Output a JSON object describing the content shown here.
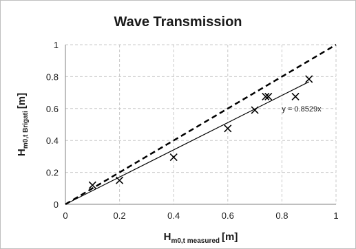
{
  "chart_data": {
    "type": "scatter",
    "title": "Wave Transmission",
    "xlabel": {
      "main": "H",
      "sub": "m0,t measured",
      "unit": "[m]"
    },
    "ylabel": {
      "main": "H",
      "sub": "m0,t Brigati",
      "unit": "[m]"
    },
    "xlim": [
      0,
      1
    ],
    "ylim": [
      0,
      1
    ],
    "x_ticks": [
      "0",
      "0.2",
      "0.4",
      "0.6",
      "0.8",
      "1"
    ],
    "y_ticks": [
      "0",
      "0.2",
      "0.4",
      "0.6",
      "0.8",
      "1"
    ],
    "grid": "dashed",
    "points": [
      {
        "x": 0.1,
        "y": 0.12
      },
      {
        "x": 0.2,
        "y": 0.15
      },
      {
        "x": 0.4,
        "y": 0.295
      },
      {
        "x": 0.6,
        "y": 0.475
      },
      {
        "x": 0.7,
        "y": 0.59
      },
      {
        "x": 0.74,
        "y": 0.675
      },
      {
        "x": 0.75,
        "y": 0.675
      },
      {
        "x": 0.85,
        "y": 0.675
      },
      {
        "x": 0.9,
        "y": 0.785
      }
    ],
    "trendline": {
      "slope": 0.8529,
      "x_range": [
        0,
        0.9
      ],
      "label": "y = 0.8529x"
    },
    "reference_line": {
      "slope": 1,
      "style": "dashed",
      "x_range": [
        0,
        1
      ]
    },
    "colors": {
      "marker": "#000000",
      "grid": "#c8c8c8",
      "lines": "#000000"
    }
  }
}
